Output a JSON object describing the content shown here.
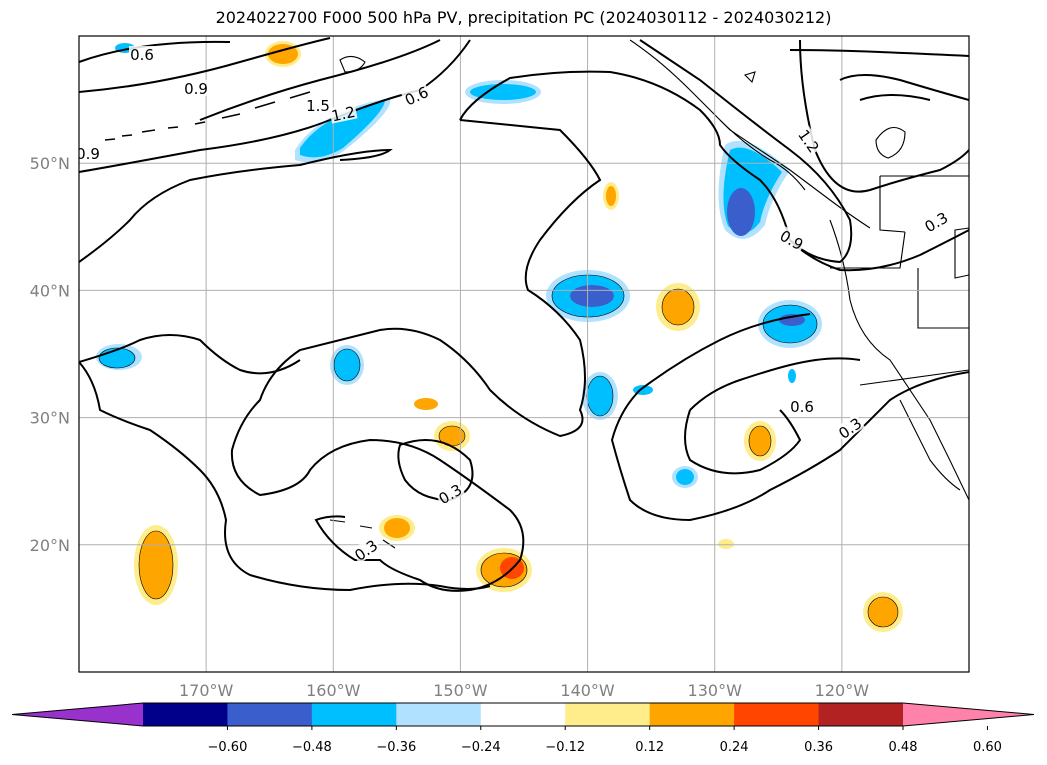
{
  "title": "2024022700 F000 500 hPa PV, precipitation PC (2024030112 - 2024030212)",
  "map": {
    "extent_lon": [
      -180,
      -110
    ],
    "extent_lat": [
      10,
      60
    ],
    "lat_ticks": [
      {
        "value": 50,
        "label": "50°N"
      },
      {
        "value": 40,
        "label": "40°N"
      },
      {
        "value": 30,
        "label": "30°N"
      },
      {
        "value": 20,
        "label": "20°N"
      }
    ],
    "lon_ticks": [
      {
        "value": -170,
        "label": "170°W"
      },
      {
        "value": -160,
        "label": "160°W"
      },
      {
        "value": -150,
        "label": "150°W"
      },
      {
        "value": -140,
        "label": "140°W"
      },
      {
        "value": -130,
        "label": "130°W"
      },
      {
        "value": -120,
        "label": "120°W"
      }
    ],
    "grid": true,
    "contour_labels": [
      "0.6",
      "0.9",
      "1.5",
      "1.2",
      "0.6",
      "0.9",
      "1.2",
      "0.9",
      "0.3",
      "0.6",
      "0.3",
      "0.3",
      "0.3"
    ]
  },
  "colorbar": {
    "ticks": [
      "−0.60",
      "−0.48",
      "−0.36",
      "−0.24",
      "−0.12",
      "0.12",
      "0.24",
      "0.36",
      "0.48",
      "0.60"
    ],
    "colors": [
      "#9932cc",
      "#00008b",
      "#3a5fcd",
      "#00bfff",
      "#b0e2ff",
      "#ffffff",
      "#ffec8b",
      "#ffa500",
      "#ff4500",
      "#b22222",
      "#ff82ab"
    ],
    "extend": "both"
  }
}
